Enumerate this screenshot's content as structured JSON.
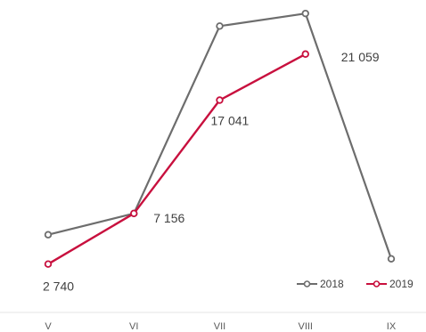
{
  "chart_data": {
    "type": "line",
    "categories": [
      "V",
      "VI",
      "VII",
      "VIII",
      "IX"
    ],
    "ylim": [
      0,
      25000
    ],
    "grid": false,
    "legend": "bottom-right",
    "series": [
      {
        "name": "2018",
        "color": "#6d6d6d",
        "values": [
          5300,
          7156,
          23500,
          24600,
          3200
        ]
      },
      {
        "name": "2019",
        "color": "#c8103e",
        "values": [
          2740,
          7156,
          17041,
          21059,
          null
        ]
      }
    ],
    "data_labels": [
      {
        "series": "2019",
        "index": 0,
        "text": "2 740"
      },
      {
        "series": "2019",
        "index": 1,
        "text": "7 156"
      },
      {
        "series": "2019",
        "index": 2,
        "text": "17 041"
      },
      {
        "series": "2019",
        "index": 3,
        "text": "21 059"
      }
    ]
  }
}
